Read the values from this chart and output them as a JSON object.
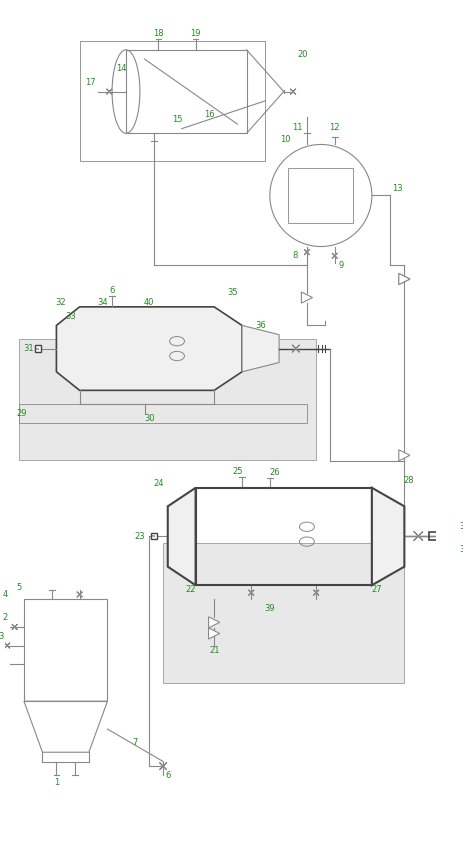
{
  "bg_color": "#ffffff",
  "line_color": "#888888",
  "dark_line": "#444444",
  "green_label": "#228B22",
  "fig_width": 4.64,
  "fig_height": 8.56,
  "dpi": 100
}
